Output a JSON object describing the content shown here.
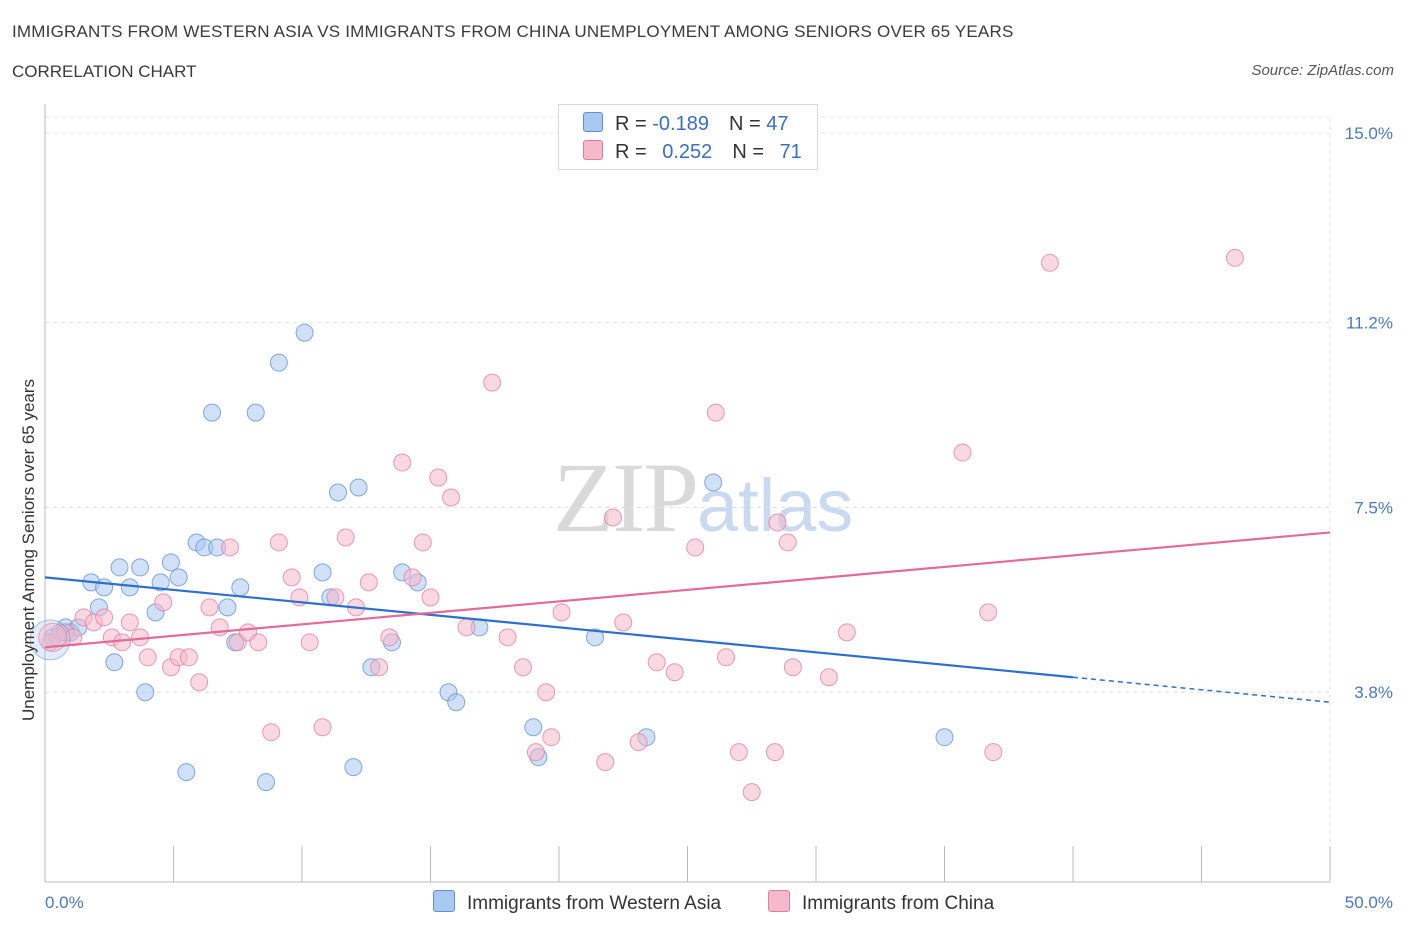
{
  "header": {
    "title": "IMMIGRANTS FROM WESTERN ASIA VS IMMIGRANTS FROM CHINA UNEMPLOYMENT AMONG SENIORS OVER 65 YEARS",
    "subtitle": "CORRELATION CHART",
    "source": "Source: ZipAtlas.com"
  },
  "watermark": {
    "zip": "ZIP",
    "atlas": "atlas"
  },
  "legend": {
    "rows": [
      {
        "r_label": "R = ",
        "r_value": "-0.189",
        "n_label": "N = ",
        "n_value": "47"
      },
      {
        "r_label": "R = ",
        "r_value": "0.252",
        "n_label": "N = ",
        "n_value": "71"
      }
    ]
  },
  "colors": {
    "western_asia_fill": "#a9c8f0",
    "western_asia_stroke": "#5b8fd6",
    "western_asia_line": "#2f6fcc",
    "china_fill": "#f6b8cb",
    "china_stroke": "#e07ca0",
    "china_line": "#e06c97",
    "grid": "#e0e0e0",
    "tick_text": "#4a78c2"
  },
  "chart_data": {
    "type": "scatter",
    "title": "IMMIGRANTS FROM WESTERN ASIA VS IMMIGRANTS FROM CHINA UNEMPLOYMENT AMONG SENIORS OVER 65 YEARS",
    "xlabel": "",
    "ylabel": "Unemployment Among Seniors over 65 years",
    "xlim": [
      0,
      50
    ],
    "ylim": [
      0,
      15.3
    ],
    "x_tick_labels": [
      "0.0%",
      "50.0%"
    ],
    "x_tick_values": [
      0,
      50
    ],
    "y_tick_labels": [
      "3.8%",
      "7.5%",
      "11.2%",
      "15.0%"
    ],
    "y_tick_values": [
      3.8,
      7.5,
      11.2,
      15.0
    ],
    "grid": true,
    "legend_position": "top-center",
    "series": [
      {
        "name": "Immigrants from Western Asia",
        "points": [
          [
            0.3,
            4.9
          ],
          [
            0.6,
            5.0
          ],
          [
            0.8,
            5.1
          ],
          [
            1.0,
            5.0
          ],
          [
            1.3,
            5.1
          ],
          [
            1.8,
            6.0
          ],
          [
            2.1,
            5.5
          ],
          [
            2.3,
            5.9
          ],
          [
            2.7,
            4.4
          ],
          [
            2.9,
            6.3
          ],
          [
            3.3,
            5.9
          ],
          [
            3.7,
            6.3
          ],
          [
            3.9,
            3.8
          ],
          [
            4.3,
            5.4
          ],
          [
            4.5,
            6.0
          ],
          [
            4.9,
            6.4
          ],
          [
            5.2,
            6.1
          ],
          [
            5.5,
            2.2
          ],
          [
            5.9,
            6.8
          ],
          [
            6.2,
            6.7
          ],
          [
            6.5,
            9.4
          ],
          [
            6.7,
            6.7
          ],
          [
            7.1,
            5.5
          ],
          [
            7.4,
            4.8
          ],
          [
            7.6,
            5.9
          ],
          [
            8.2,
            9.4
          ],
          [
            8.6,
            2.0
          ],
          [
            9.1,
            10.4
          ],
          [
            10.1,
            11.0
          ],
          [
            10.8,
            6.2
          ],
          [
            11.1,
            5.7
          ],
          [
            11.4,
            7.8
          ],
          [
            12.0,
            2.3
          ],
          [
            12.2,
            7.9
          ],
          [
            12.7,
            4.3
          ],
          [
            13.5,
            4.8
          ],
          [
            13.9,
            6.2
          ],
          [
            14.5,
            6.0
          ],
          [
            15.7,
            3.8
          ],
          [
            16.0,
            3.6
          ],
          [
            16.9,
            5.1
          ],
          [
            19.0,
            3.1
          ],
          [
            19.2,
            2.5
          ],
          [
            21.4,
            4.9
          ],
          [
            23.4,
            2.9
          ],
          [
            26.0,
            8.0
          ],
          [
            35.0,
            2.9
          ]
        ],
        "trend": {
          "x0": 0,
          "y0": 6.1,
          "x1": 40,
          "y1": 4.1,
          "dashed_to_x": 50,
          "dashed_to_y": 3.6
        }
      },
      {
        "name": "Immigrants from China",
        "points": [
          [
            0.2,
            4.8
          ],
          [
            0.5,
            4.9
          ],
          [
            0.8,
            5.0
          ],
          [
            1.1,
            4.9
          ],
          [
            1.5,
            5.3
          ],
          [
            1.9,
            5.2
          ],
          [
            2.3,
            5.3
          ],
          [
            2.6,
            4.9
          ],
          [
            3.0,
            4.8
          ],
          [
            3.3,
            5.2
          ],
          [
            3.7,
            4.9
          ],
          [
            4.0,
            4.5
          ],
          [
            4.6,
            5.6
          ],
          [
            4.9,
            4.3
          ],
          [
            5.2,
            4.5
          ],
          [
            5.6,
            4.5
          ],
          [
            6.0,
            4.0
          ],
          [
            6.4,
            5.5
          ],
          [
            6.8,
            5.1
          ],
          [
            7.2,
            6.7
          ],
          [
            7.5,
            4.8
          ],
          [
            7.9,
            5.0
          ],
          [
            8.3,
            4.8
          ],
          [
            8.8,
            3.0
          ],
          [
            9.1,
            6.8
          ],
          [
            9.6,
            6.1
          ],
          [
            9.9,
            5.7
          ],
          [
            10.3,
            4.8
          ],
          [
            10.8,
            3.1
          ],
          [
            11.3,
            5.7
          ],
          [
            11.7,
            6.9
          ],
          [
            12.1,
            5.5
          ],
          [
            12.6,
            6.0
          ],
          [
            13.0,
            4.3
          ],
          [
            13.4,
            4.9
          ],
          [
            13.9,
            8.4
          ],
          [
            14.3,
            6.1
          ],
          [
            14.7,
            6.8
          ],
          [
            15.0,
            5.7
          ],
          [
            15.3,
            8.1
          ],
          [
            15.8,
            7.7
          ],
          [
            16.4,
            5.1
          ],
          [
            17.4,
            10.0
          ],
          [
            18.0,
            4.9
          ],
          [
            18.6,
            4.3
          ],
          [
            19.1,
            2.6
          ],
          [
            19.5,
            3.8
          ],
          [
            19.7,
            2.9
          ],
          [
            20.1,
            5.4
          ],
          [
            21.8,
            2.4
          ],
          [
            22.1,
            7.3
          ],
          [
            22.5,
            5.2
          ],
          [
            23.1,
            2.8
          ],
          [
            23.8,
            4.4
          ],
          [
            24.5,
            4.2
          ],
          [
            25.3,
            6.7
          ],
          [
            26.1,
            9.4
          ],
          [
            26.5,
            4.5
          ],
          [
            27.0,
            2.6
          ],
          [
            27.5,
            1.8
          ],
          [
            28.4,
            2.6
          ],
          [
            28.5,
            7.2
          ],
          [
            28.9,
            6.8
          ],
          [
            29.1,
            4.3
          ],
          [
            30.5,
            4.1
          ],
          [
            31.2,
            5.0
          ],
          [
            35.7,
            8.6
          ],
          [
            36.7,
            5.4
          ],
          [
            36.9,
            2.6
          ],
          [
            39.1,
            12.4
          ],
          [
            46.3,
            12.5
          ]
        ],
        "trend": {
          "x0": 0,
          "y0": 4.7,
          "x1": 50,
          "y1": 7.0
        }
      }
    ]
  },
  "bottom_legend": {
    "western_asia_label": "Immigrants from Western Asia",
    "china_label": "Immigrants from China"
  }
}
